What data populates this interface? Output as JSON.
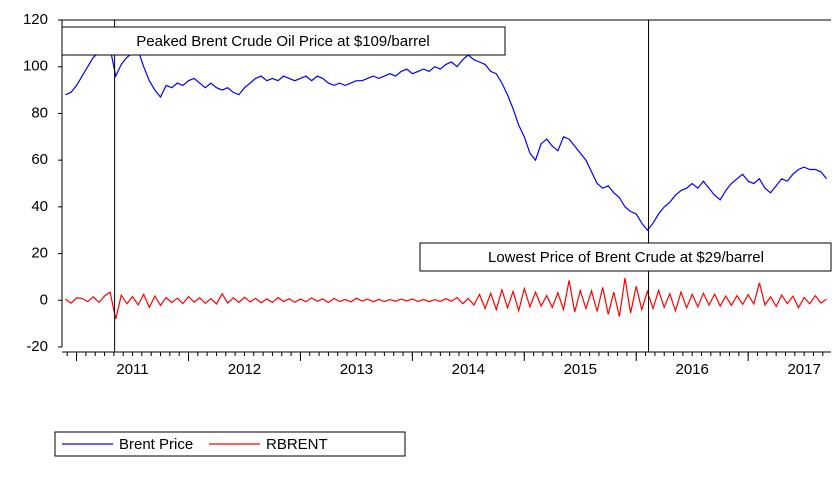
{
  "chart_data": {
    "type": "line",
    "x": [
      2010.9,
      2010.95,
      2011.0,
      2011.05,
      2011.1,
      2011.15,
      2011.2,
      2011.25,
      2011.3,
      2011.35,
      2011.4,
      2011.45,
      2011.5,
      2011.55,
      2011.6,
      2011.65,
      2011.7,
      2011.75,
      2011.8,
      2011.85,
      2011.9,
      2011.95,
      2012.0,
      2012.05,
      2012.1,
      2012.15,
      2012.2,
      2012.25,
      2012.3,
      2012.35,
      2012.4,
      2012.45,
      2012.5,
      2012.55,
      2012.6,
      2012.65,
      2012.7,
      2012.75,
      2012.8,
      2012.85,
      2012.9,
      2012.95,
      2013.0,
      2013.05,
      2013.1,
      2013.15,
      2013.2,
      2013.25,
      2013.3,
      2013.35,
      2013.4,
      2013.45,
      2013.5,
      2013.55,
      2013.6,
      2013.65,
      2013.7,
      2013.75,
      2013.8,
      2013.85,
      2013.9,
      2013.95,
      2014.0,
      2014.05,
      2014.1,
      2014.15,
      2014.2,
      2014.25,
      2014.3,
      2014.35,
      2014.4,
      2014.45,
      2014.5,
      2014.55,
      2014.6,
      2014.65,
      2014.7,
      2014.75,
      2014.8,
      2014.85,
      2014.9,
      2014.95,
      2015.0,
      2015.05,
      2015.1,
      2015.15,
      2015.2,
      2015.25,
      2015.3,
      2015.35,
      2015.4,
      2015.45,
      2015.5,
      2015.55,
      2015.6,
      2015.65,
      2015.7,
      2015.75,
      2015.8,
      2015.85,
      2015.9,
      2015.95,
      2016.0,
      2016.05,
      2016.1,
      2016.15,
      2016.2,
      2016.25,
      2016.3,
      2016.35,
      2016.4,
      2016.45,
      2016.5,
      2016.55,
      2016.6,
      2016.65,
      2016.7,
      2016.75,
      2016.8,
      2016.85,
      2016.9,
      2016.95,
      2017.0,
      2017.05,
      2017.1,
      2017.15,
      2017.2,
      2017.25,
      2017.3,
      2017.35,
      2017.4,
      2017.45,
      2017.5,
      2017.55,
      2017.6,
      2017.65,
      2017.7
    ],
    "series": [
      {
        "name": "Brent Price",
        "color": "#0000ff",
        "values": [
          88,
          89,
          92,
          96,
          100,
          104,
          106,
          107,
          108,
          96,
          101,
          104,
          106,
          107,
          100,
          94,
          90,
          87,
          92,
          91,
          93,
          92,
          94,
          95,
          93,
          91,
          93,
          91,
          90,
          91,
          89,
          88,
          91,
          93,
          95,
          96,
          94,
          95,
          94,
          96,
          95,
          94,
          95,
          96,
          94,
          96,
          95,
          93,
          92,
          93,
          92,
          93,
          94,
          94,
          95,
          96,
          95,
          96,
          97,
          96,
          98,
          99,
          97,
          98,
          99,
          98,
          100,
          99,
          101,
          102,
          100,
          103,
          105,
          103,
          102,
          101,
          98,
          97,
          93,
          88,
          82,
          75,
          70,
          63,
          60,
          67,
          69,
          66,
          64,
          70,
          69,
          66,
          63,
          60,
          55,
          50,
          48,
          49,
          46,
          44,
          40,
          38,
          37,
          33,
          30,
          33,
          37,
          40,
          42,
          45,
          47,
          48,
          50,
          48,
          51,
          48,
          45,
          43,
          47,
          50,
          52,
          54,
          51,
          50,
          52,
          48,
          46,
          49,
          52,
          51,
          54,
          56,
          57,
          56,
          56,
          55,
          52
        ]
      },
      {
        "name": "RBRENT",
        "color": "#ff0000",
        "values": [
          0.5,
          -1.2,
          1.0,
          0.8,
          -0.6,
          1.5,
          -0.9,
          1.8,
          3.5,
          -8.0,
          2.2,
          -1.5,
          1.6,
          -2.0,
          2.5,
          -3.0,
          1.8,
          -2.2,
          1.2,
          -1.0,
          0.9,
          -1.4,
          1.6,
          -0.8,
          1.1,
          -1.3,
          0.7,
          -1.6,
          2.8,
          -1.2,
          1.0,
          -0.9,
          1.3,
          -0.7,
          0.8,
          -1.1,
          0.6,
          -0.9,
          1.2,
          -0.5,
          0.7,
          -0.8,
          0.5,
          -0.6,
          1.0,
          -0.4,
          0.6,
          -1.0,
          0.8,
          -0.5,
          0.4,
          -0.7,
          0.9,
          -0.3,
          0.5,
          -0.6,
          0.4,
          -0.5,
          0.3,
          -0.4,
          0.5,
          -0.3,
          0.6,
          -0.5,
          0.4,
          -0.6,
          0.3,
          -0.5,
          0.7,
          -0.4,
          1.2,
          -1.5,
          0.8,
          -2.0,
          2.5,
          -3.5,
          3.0,
          -4.0,
          4.5,
          -3.2,
          3.8,
          -4.5,
          5.0,
          -2.8,
          3.5,
          -2.5,
          2.0,
          -3.0,
          3.2,
          -4.0,
          8.5,
          -5.0,
          4.2,
          -3.5,
          4.0,
          -4.8,
          5.5,
          -6.0,
          3.5,
          -7.0,
          9.5,
          -5.5,
          6.0,
          -4.0,
          3.8,
          -3.5,
          4.2,
          -3.0,
          2.8,
          -4.5,
          3.5,
          -3.2,
          2.5,
          -2.8,
          3.0,
          -2.0,
          2.6,
          -2.4,
          1.8,
          -2.2,
          2.0,
          -1.8,
          2.4,
          -1.6,
          7.5,
          -2.0,
          1.5,
          -2.6,
          2.2,
          -1.4,
          1.8,
          -3.2,
          1.2,
          -1.5,
          2.0,
          -1.2,
          0.5
        ]
      }
    ],
    "annotations": [
      {
        "text": "Peaked Brent Crude Oil Price at $109/barrel",
        "x": 2011.34
      },
      {
        "text": "Lowest Price of Brent Crude at $29/barrel",
        "x": 2016.11
      }
    ],
    "xlim": [
      2010.87,
      2017.74
    ],
    "xticks": [
      2011,
      2012,
      2013,
      2014,
      2015,
      2016,
      2017
    ],
    "ylim": [
      -20,
      120
    ],
    "yticks": [
      -20,
      0,
      20,
      40,
      60,
      80,
      100,
      120
    ],
    "legend": "bottom-left"
  }
}
